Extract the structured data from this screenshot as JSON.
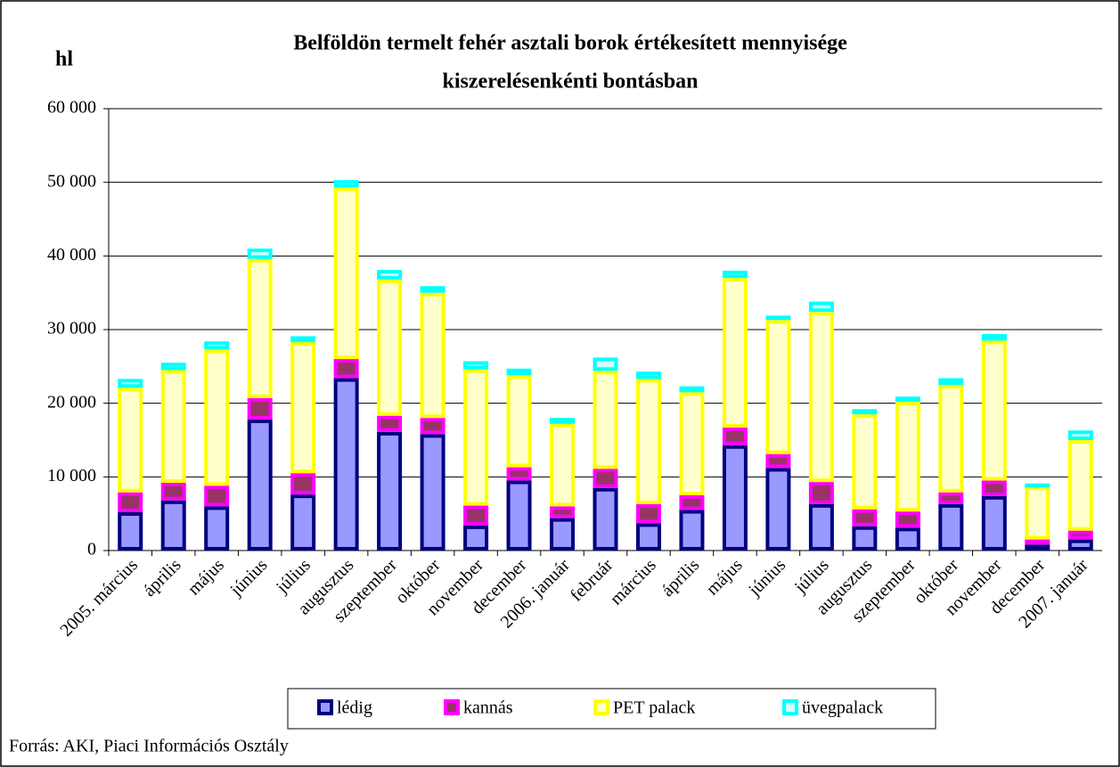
{
  "chart_data": {
    "type": "stacked_bar",
    "title": [
      "Belföldön termelt fehér asztali borok értékesített mennyisége",
      "kiszerelésenkénti bontásban"
    ],
    "y_label": "hl",
    "source": "Forrás: AKI, Piaci Információs Osztály",
    "categories": [
      "2005. március",
      "április",
      "május",
      "június",
      "július",
      "augusztus",
      "szeptember",
      "október",
      "november",
      "december",
      "2006. január",
      "február",
      "március",
      "április",
      "május",
      "június",
      "július",
      "augusztus",
      "szeptember",
      "október",
      "november",
      "december",
      "2007. január"
    ],
    "series": [
      {
        "name": "lédig",
        "color": "#000080",
        "fill": "#9999ff",
        "values": [
          5200,
          6800,
          6000,
          17800,
          7600,
          23400,
          16100,
          15800,
          3400,
          9500,
          4400,
          8500,
          3700,
          5500,
          14300,
          11200,
          6300,
          3300,
          3100,
          6300,
          7400,
          800,
          1500
        ]
      },
      {
        "name": "kannás",
        "color": "#ff00ff",
        "fill": "#993366",
        "values": [
          2700,
          2400,
          2800,
          2900,
          2900,
          2600,
          2200,
          2200,
          2700,
          1800,
          1600,
          2600,
          2600,
          2000,
          2400,
          1900,
          3000,
          2300,
          2200,
          1600,
          2100,
          700,
          1200
        ]
      },
      {
        "name": "PET palack",
        "color": "#ffff00",
        "fill": "#ffffcc",
        "values": [
          14200,
          15300,
          18500,
          18900,
          17800,
          23300,
          18500,
          17000,
          18500,
          12500,
          11200,
          13300,
          17000,
          14000,
          20300,
          18200,
          23100,
          12900,
          14900,
          14600,
          19000,
          7200,
          12300
        ]
      },
      {
        "name": "üvegpalack",
        "color": "#00ffff",
        "fill": "#ccffff",
        "values": [
          1200,
          1000,
          1100,
          1400,
          800,
          1000,
          1300,
          900,
          1100,
          900,
          800,
          1800,
          1000,
          800,
          1000,
          600,
          1400,
          700,
          700,
          900,
          900,
          400,
          1300
        ]
      }
    ],
    "ylim": [
      0,
      60000
    ],
    "yticks": [
      0,
      {
        "value": 10000,
        "label": "10 000"
      },
      {
        "value": 20000,
        "label": "20 000"
      },
      {
        "value": 30000,
        "label": "30 000"
      },
      {
        "value": 40000,
        "label": "40 000"
      },
      {
        "value": 50000,
        "label": "50 000"
      },
      {
        "value": 60000,
        "label": "60 000"
      }
    ],
    "grid": true
  }
}
